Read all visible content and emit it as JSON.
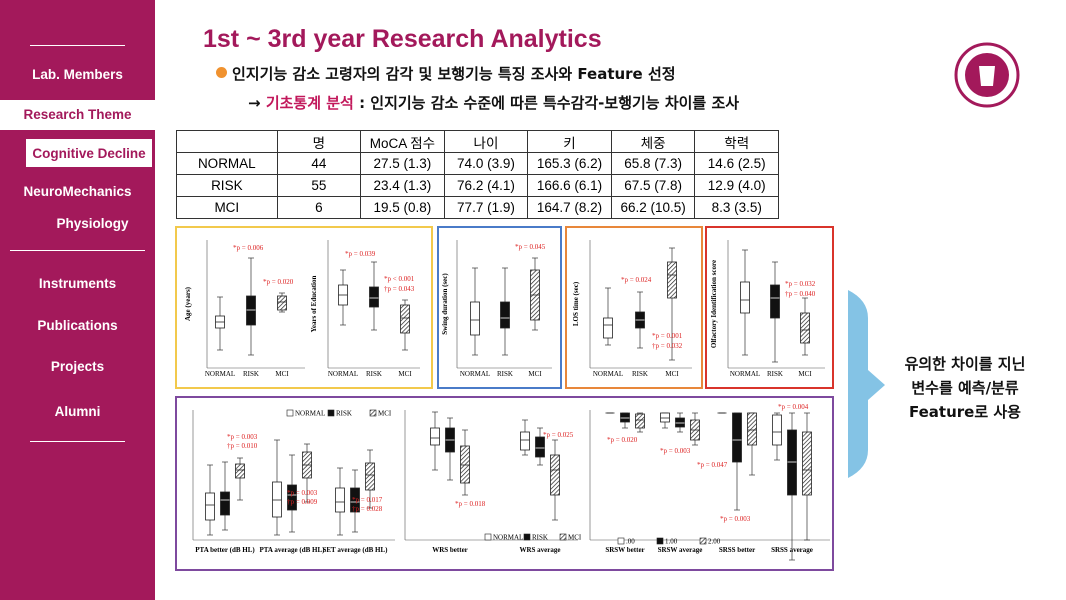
{
  "sidebar": {
    "items": [
      "Lab. Members",
      "Research Theme",
      "Cognitive Decline",
      "NeuroMechanics",
      "Physiology",
      "Instruments",
      "Publications",
      "Projects",
      "Alumni"
    ]
  },
  "header": {
    "title": "1st ~ 3rd year Research Analytics",
    "bullet": "인지기능 감소 고령자의 감각 및 보행기능 특징 조사와 Feature 선정",
    "arrow": "→",
    "highlight": "기초통계 분석",
    "sub_text": " : 인지기능 감소 수준에 따른 특수감각-보행기능 차이를 조사"
  },
  "table": {
    "header": [
      "",
      "명",
      "MoCA 점수",
      "나이",
      "키",
      "체중",
      "학력"
    ],
    "rows": [
      [
        "NORMAL",
        44,
        "27.5 (1.3)",
        "74.0 (3.9)",
        "165.3 (6.2)",
        "65.8 (7.3)",
        "14.6 (2.5)"
      ],
      [
        "RISK",
        55,
        "23.4 (1.3)",
        "76.2 (4.1)",
        "166.6 (6.1)",
        "67.5 (7.8)",
        "12.9 (4.0)"
      ],
      [
        "MCI",
        6,
        "19.5 (0.8)",
        "77.7 (1.9)",
        "164.7 (8.2)",
        "66.2 (10.5)",
        "8.3 (3.5)"
      ]
    ]
  },
  "figures": [
    {
      "charts": [
        {
          "ylabel": "Age (years)",
          "categories": [
            "NORMAL",
            "RISK",
            "MCI"
          ],
          "annotations": [
            "*p = 0.006",
            "*p = 0.020"
          ]
        },
        {
          "ylabel": "Years of Education",
          "categories": [
            "NORMAL",
            "RISK",
            "MCI"
          ],
          "annotations": [
            "*p = 0.039",
            "*p < 0.001",
            "†p = 0.043"
          ]
        }
      ]
    },
    {
      "charts": [
        {
          "ylabel": "Swing duration (sec)",
          "categories": [
            "NORMAL",
            "RISK",
            "MCI"
          ],
          "annotations": [
            "*p = 0.045"
          ]
        }
      ]
    },
    {
      "charts": [
        {
          "ylabel": "LOS time (sec)",
          "categories": [
            "NORMAL",
            "RISK",
            "MCI"
          ],
          "annotations": [
            "*p = 0.024",
            "*p = 0.001",
            "†p = 0.032"
          ]
        }
      ]
    },
    {
      "charts": [
        {
          "ylabel": "Olfactory Identification score",
          "categories": [
            "NORMAL",
            "RISK",
            "MCI"
          ],
          "annotations": [
            "*p = 0.032",
            "†p = 0.040"
          ]
        }
      ]
    },
    {
      "charts": [
        {
          "legend": [
            "NORMAL",
            "RISK",
            "MCI"
          ],
          "groups": [
            "PTA better (dB HL)",
            "PTA average (dB HL)",
            "SET average (dB HL)"
          ],
          "annotations": [
            "*p = 0.003",
            "†p = 0.010",
            "*p = 0.003",
            "†p = 0.009",
            "*p = 0.017",
            "†p = 0.028"
          ]
        },
        {
          "legend": [
            "NORMAL",
            "RISK",
            "MCI"
          ],
          "groups": [
            "WRS better",
            "WRS average"
          ],
          "annotations": [
            "*p = 0.018",
            "*p = 0.025"
          ]
        },
        {
          "legend": [
            ".00",
            "1.00",
            "2.00"
          ],
          "groups": [
            "SRSW better",
            "SRSW average",
            "SRSS better",
            "SRSS average"
          ],
          "annotations": [
            "*p = 0.020",
            "*p = 0.003",
            "*p = 0.047",
            "*p = 0.003",
            "*p = 0.004"
          ]
        }
      ]
    }
  ],
  "callout": [
    "유의한 차이를 지닌",
    "변수를 예측/분류",
    "Feature로 사용"
  ]
}
